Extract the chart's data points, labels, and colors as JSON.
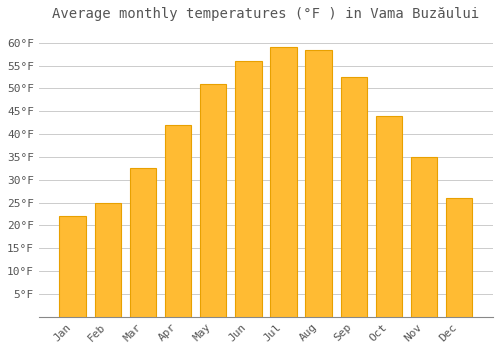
{
  "title": "Average monthly temperatures (°F ) in Vama Buzăului",
  "months": [
    "Jan",
    "Feb",
    "Mar",
    "Apr",
    "May",
    "Jun",
    "Jul",
    "Aug",
    "Sep",
    "Oct",
    "Nov",
    "Dec"
  ],
  "values": [
    22,
    25,
    32.5,
    42,
    51,
    56,
    59,
    58.5,
    52.5,
    44,
    35,
    26
  ],
  "bar_color": "#FFBB33",
  "bar_edge_color": "#E8A000",
  "background_color": "#FFFFFF",
  "grid_color": "#CCCCCC",
  "text_color": "#555555",
  "ylim": [
    0,
    63
  ],
  "yticks": [
    5,
    10,
    15,
    20,
    25,
    30,
    35,
    40,
    45,
    50,
    55,
    60
  ],
  "title_fontsize": 10,
  "tick_fontsize": 8,
  "bar_width": 0.75
}
